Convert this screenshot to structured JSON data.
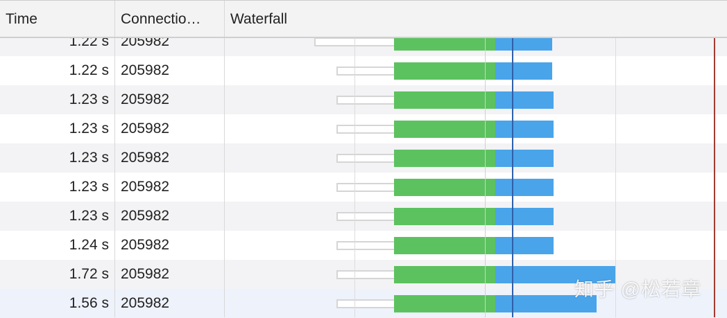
{
  "header": {
    "time": "Time",
    "connection": "Connectio…",
    "waterfall": "Waterfall"
  },
  "colors": {
    "queue": "#d5d5d5",
    "waiting": "#5cc25f",
    "download": "#4aa4ea",
    "dom_line": "#2f5fa8",
    "load_line": "#a33a30"
  },
  "rows": [
    {
      "time": "1.22 s",
      "connection": "205982",
      "bar_end": 796,
      "stall_start": 453
    },
    {
      "time": "1.22 s",
      "connection": "205982",
      "bar_end": 796,
      "stall_start": 485
    },
    {
      "time": "1.23 s",
      "connection": "205982",
      "bar_end": 798,
      "stall_start": 485
    },
    {
      "time": "1.23 s",
      "connection": "205982",
      "bar_end": 798,
      "stall_start": 485
    },
    {
      "time": "1.23 s",
      "connection": "205982",
      "bar_end": 798,
      "stall_start": 485
    },
    {
      "time": "1.23 s",
      "connection": "205982",
      "bar_end": 798,
      "stall_start": 485
    },
    {
      "time": "1.23 s",
      "connection": "205982",
      "bar_end": 798,
      "stall_start": 485
    },
    {
      "time": "1.24 s",
      "connection": "205982",
      "bar_end": 798,
      "stall_start": 485
    },
    {
      "time": "1.72 s",
      "connection": "205982",
      "bar_end": 888,
      "stall_start": 485
    },
    {
      "time": "1.56 s",
      "connection": "205982",
      "bar_end": 860,
      "stall_start": 485
    }
  ],
  "watermark": "知乎 @松若章"
}
